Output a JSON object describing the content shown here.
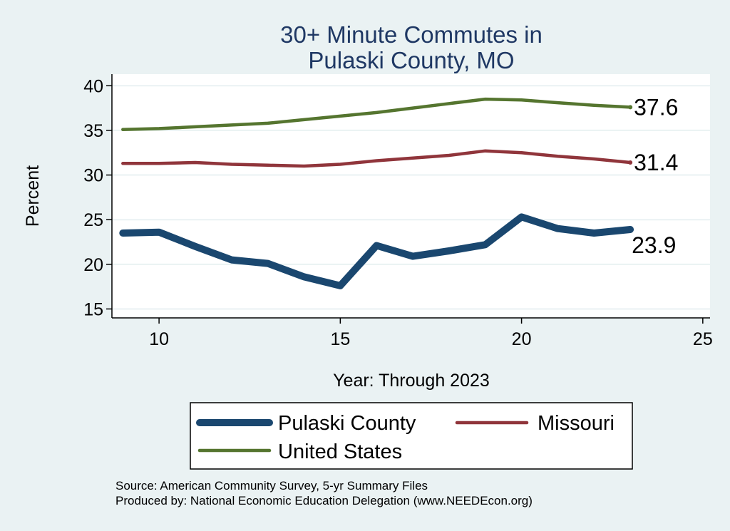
{
  "chart_data": {
    "type": "line",
    "title": [
      "30+ Minute Commutes in",
      "Pulaski County, MO"
    ],
    "xlabel": "Year: Through 2023",
    "ylabel": "Percent",
    "xlim": [
      8.7,
      25.2
    ],
    "ylim": [
      14,
      41.3
    ],
    "xticks": [
      10,
      15,
      20,
      25
    ],
    "yticks": [
      15,
      20,
      25,
      30,
      35,
      40
    ],
    "grid": true,
    "legend_position": "bottom",
    "series": [
      {
        "name": "Pulaski County",
        "color": "#1a476f",
        "x": [
          9,
          10,
          11,
          12,
          13,
          14,
          15,
          16,
          17,
          18,
          19,
          20,
          21,
          22,
          23
        ],
        "values": [
          23.5,
          23.6,
          22.0,
          20.5,
          20.1,
          18.6,
          17.6,
          22.1,
          20.9,
          21.5,
          22.2,
          25.3,
          24.0,
          23.5,
          23.9
        ],
        "end_label": "23.9"
      },
      {
        "name": "Missouri",
        "color": "#90353b",
        "x": [
          9,
          10,
          11,
          12,
          13,
          14,
          15,
          16,
          17,
          18,
          19,
          20,
          21,
          22,
          23
        ],
        "values": [
          31.3,
          31.3,
          31.4,
          31.2,
          31.1,
          31.0,
          31.2,
          31.6,
          31.9,
          32.2,
          32.7,
          32.5,
          32.1,
          31.8,
          31.4
        ],
        "end_label": "31.4"
      },
      {
        "name": "United States",
        "color": "#55752f",
        "x": [
          9,
          10,
          11,
          12,
          13,
          14,
          15,
          16,
          17,
          18,
          19,
          20,
          21,
          22,
          23
        ],
        "values": [
          35.1,
          35.2,
          35.4,
          35.6,
          35.8,
          36.2,
          36.6,
          37.0,
          37.5,
          38.0,
          38.5,
          38.4,
          38.1,
          37.8,
          37.6
        ],
        "end_label": "37.6"
      }
    ]
  },
  "footer": {
    "source": "Source: American Community Survey, 5-yr Summary Files",
    "produced_by": "Produced by: National Economic Education Delegation (www.NEEDEcon.org)"
  }
}
